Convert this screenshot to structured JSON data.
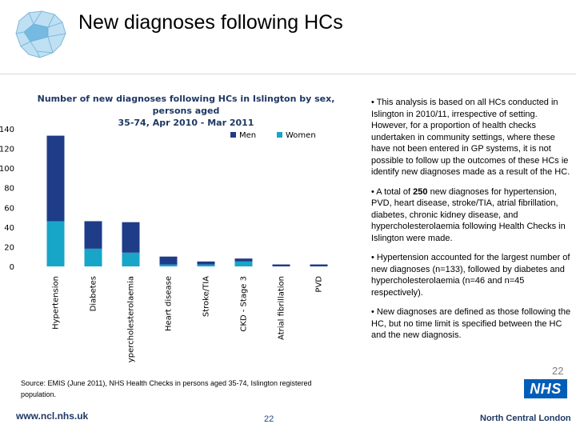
{
  "slide": {
    "title": "New diagnoses following HCs",
    "page_number": "22",
    "side_number": "22",
    "footer_url": "www.ncl.nhs.uk",
    "footer_org": "North Central London",
    "nhs_logo_text": "NHS",
    "source": "Source: EMIS (June 2011), NHS Health Checks in persons aged 35-74, Islington registered population."
  },
  "bullets": [
    "• This analysis is based on all HCs conducted in Islington in 2010/11, irrespective of setting.  However, for a proportion of health checks undertaken in community settings, where these have not been entered in GP systems, it is not possible to follow up the outcomes of these HCs ie identify new diagnoses made as a result of the HC.",
    "• A total of 250 new diagnoses for hypertension, PVD, heart disease, stroke/TIA, atrial fibrillation, diabetes, chronic kidney disease, and hypercholesterolaemia following Health Checks in Islington were made.",
    "• Hypertension accounted for the largest number of new diagnoses (n=133), followed by diabetes and hypercholesterolaemia (n=46 and n=45 respectively).",
    "• New diagnoses are defined as those following the HC, but no time limit is specified between the HC and the new diagnosis."
  ],
  "chart_data": {
    "type": "bar",
    "stacked": true,
    "title_lines": [
      "Number of new diagnoses following HCs in Islington by sex, persons aged",
      "35-74, Apr 2010 - Mar 2011"
    ],
    "categories": [
      "Hypertension",
      "Diabetes",
      "Hypercholesterolaemia",
      "Heart disease",
      "Stroke/TIA",
      "CKD - Stage 3",
      "Atrial fibrillation",
      "PVD"
    ],
    "series": [
      {
        "name": "Women",
        "color": "#17a5c8",
        "values": [
          46,
          18,
          14,
          2,
          2,
          5,
          0,
          0
        ]
      },
      {
        "name": "Men",
        "color": "#1f3c88",
        "values": [
          87,
          28,
          31,
          8,
          3,
          3,
          2,
          2
        ]
      }
    ],
    "ylim": [
      0,
      140
    ],
    "yticks": [
      0,
      20,
      40,
      60,
      80,
      100,
      120,
      140
    ],
    "legend_position": "top-right",
    "grid": false
  }
}
